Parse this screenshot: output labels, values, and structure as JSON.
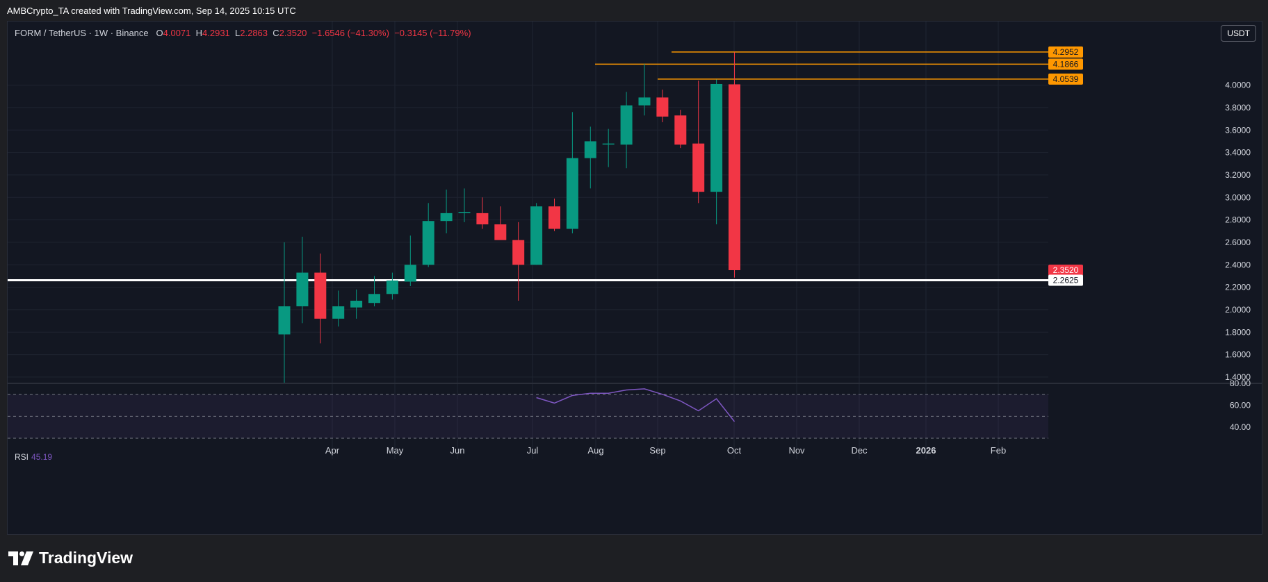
{
  "header": {
    "credit": "AMBCrypto_TA created with TradingView.com, Sep 14, 2025 10:15 UTC"
  },
  "legend": {
    "symbol": "FORM / TetherUS · 1W · Binance",
    "o_label": "O",
    "o": "4.0071",
    "h_label": "H",
    "h": "4.2931",
    "l_label": "L",
    "l": "2.2863",
    "c_label": "C",
    "c": "2.3520",
    "change": "−1.6546 (−41.30%)",
    "change2": "−0.3145 (−11.79%)"
  },
  "unit_badge": "USDT",
  "rsi": {
    "name": "RSI",
    "value": "45.19"
  },
  "footer": {
    "brand": "TradingView"
  },
  "colors": {
    "up": "#089981",
    "down": "#f23645",
    "bg": "#131722",
    "grid": "#1f2431",
    "level": "#ff9800",
    "support": "#ffffff",
    "rsi": "#7e57c2"
  },
  "chart_data": {
    "type": "candlestick",
    "title": "FORM / TetherUS · 1W · Binance",
    "y_axis": {
      "min": 1.35,
      "max": 4.35,
      "ticks": [
        "1.4000",
        "1.6000",
        "1.8000",
        "2.0000",
        "2.2000",
        "2.4000",
        "2.6000",
        "2.8000",
        "3.0000",
        "3.2000",
        "3.4000",
        "3.6000",
        "3.8000",
        "4.0000"
      ]
    },
    "x_axis": {
      "labels": [
        "Apr",
        "May",
        "Jun",
        "Jul",
        "Aug",
        "Sep",
        "Oct",
        "Nov",
        "Dec",
        "2026",
        "Feb"
      ]
    },
    "candles": [
      {
        "o": 1.78,
        "h": 2.6,
        "l": 1.35,
        "c": 2.03
      },
      {
        "o": 2.03,
        "h": 2.65,
        "l": 1.88,
        "c": 2.33
      },
      {
        "o": 2.33,
        "h": 2.5,
        "l": 1.7,
        "c": 1.92
      },
      {
        "o": 1.92,
        "h": 2.17,
        "l": 1.85,
        "c": 2.03
      },
      {
        "o": 2.02,
        "h": 2.18,
        "l": 1.92,
        "c": 2.08
      },
      {
        "o": 2.06,
        "h": 2.3,
        "l": 2.03,
        "c": 2.14
      },
      {
        "o": 2.14,
        "h": 2.33,
        "l": 2.09,
        "c": 2.26
      },
      {
        "o": 2.25,
        "h": 2.66,
        "l": 2.21,
        "c": 2.4
      },
      {
        "o": 2.4,
        "h": 2.95,
        "l": 2.38,
        "c": 2.79
      },
      {
        "o": 2.79,
        "h": 3.07,
        "l": 2.68,
        "c": 2.86
      },
      {
        "o": 2.86,
        "h": 3.08,
        "l": 2.78,
        "c": 2.87
      },
      {
        "o": 2.86,
        "h": 3.0,
        "l": 2.72,
        "c": 2.76
      },
      {
        "o": 2.76,
        "h": 2.92,
        "l": 2.63,
        "c": 2.62
      },
      {
        "o": 2.62,
        "h": 2.78,
        "l": 2.08,
        "c": 2.4
      },
      {
        "o": 2.4,
        "h": 2.95,
        "l": 2.4,
        "c": 2.92
      },
      {
        "o": 2.92,
        "h": 2.99,
        "l": 2.7,
        "c": 2.72
      },
      {
        "o": 2.72,
        "h": 3.76,
        "l": 2.68,
        "c": 3.35
      },
      {
        "o": 3.35,
        "h": 3.63,
        "l": 3.08,
        "c": 3.5
      },
      {
        "o": 3.48,
        "h": 3.61,
        "l": 3.27,
        "c": 3.48
      },
      {
        "o": 3.47,
        "h": 3.94,
        "l": 3.26,
        "c": 3.82
      },
      {
        "o": 3.82,
        "h": 4.19,
        "l": 3.73,
        "c": 3.89
      },
      {
        "o": 3.89,
        "h": 3.96,
        "l": 3.67,
        "c": 3.72
      },
      {
        "o": 3.73,
        "h": 3.78,
        "l": 3.44,
        "c": 3.47
      },
      {
        "o": 3.48,
        "h": 4.04,
        "l": 2.95,
        "c": 3.05
      },
      {
        "o": 3.05,
        "h": 4.05,
        "l": 2.76,
        "c": 4.01
      },
      {
        "o": 4.0071,
        "h": 4.2931,
        "l": 2.2863,
        "c": 2.352
      }
    ],
    "levels": [
      {
        "value": 4.2952,
        "label": "4.2952"
      },
      {
        "value": 4.1866,
        "label": "4.1866"
      },
      {
        "value": 4.0539,
        "label": "4.0539"
      }
    ],
    "support": {
      "value": 2.2625,
      "label": "2.2625"
    },
    "last_price": {
      "value": 2.352,
      "label": "2.3520"
    },
    "rsi": {
      "range": [
        30,
        80
      ],
      "ticks": [
        "40.00",
        "60.00",
        "80.00"
      ],
      "bands": [
        30,
        50,
        70
      ],
      "start_index": 14,
      "values": [
        67,
        62,
        69,
        71,
        71,
        74,
        75,
        70,
        64,
        55,
        66,
        45.19
      ]
    }
  }
}
